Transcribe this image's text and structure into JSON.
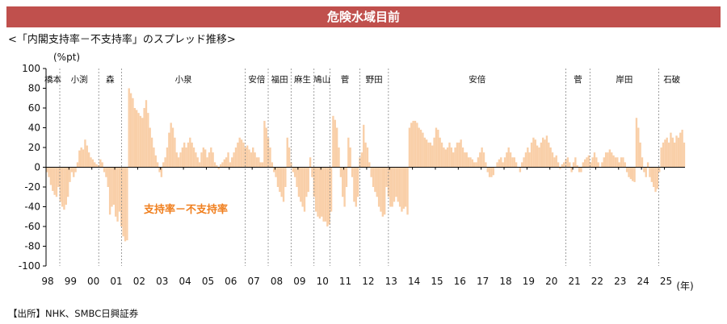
{
  "banner": {
    "title": "危険水域目前"
  },
  "subtitle": "<「内閣支持率－不支持率」のスプレッド推移>",
  "source": "【出所】NHK、SMBC日興証券",
  "colors": {
    "banner": "#c0504d",
    "bar": "#f9cfa8",
    "annotation": "#f07f1e",
    "divider": "#888888"
  },
  "chart_data": {
    "type": "bar",
    "unit_label": "(%pt)",
    "ylim": [
      -100,
      100
    ],
    "yticks": [
      100,
      80,
      60,
      40,
      20,
      0,
      -20,
      -40,
      -60,
      -80,
      -100
    ],
    "xlim": [
      1998,
      2025.9
    ],
    "xticks": [
      "98",
      "99",
      "00",
      "01",
      "02",
      "03",
      "04",
      "05",
      "06",
      "07",
      "08",
      "09",
      "10",
      "11",
      "12",
      "13",
      "14",
      "15",
      "16",
      "17",
      "18",
      "19",
      "20",
      "21",
      "22",
      "23",
      "24",
      "25"
    ],
    "xunit": "(年)",
    "annotation": "支持率－不支持率",
    "cabinets": [
      {
        "name": "橋本",
        "start": 1998.0
      },
      {
        "name": "小渕",
        "start": 1998.6
      },
      {
        "name": "森",
        "start": 2000.3
      },
      {
        "name": "小泉",
        "start": 2001.3
      },
      {
        "name": "安倍",
        "start": 2006.7
      },
      {
        "name": "福田",
        "start": 2007.7
      },
      {
        "name": "麻生",
        "start": 2008.7
      },
      {
        "name": "鳩山",
        "start": 2009.7
      },
      {
        "name": "菅",
        "start": 2010.4
      },
      {
        "name": "野田",
        "start": 2011.7
      },
      {
        "name": "安倍",
        "start": 2012.95
      },
      {
        "name": "菅",
        "start": 2020.7
      },
      {
        "name": "岸田",
        "start": 2021.75
      },
      {
        "name": "石破",
        "start": 2024.75
      }
    ],
    "series": [
      {
        "x_start": 1998.0,
        "step": 0.0833,
        "values": [
          -5,
          -10,
          -18,
          -24,
          -28,
          -30,
          -20,
          -35,
          -40,
          -43,
          -38,
          -30,
          -15,
          -5,
          -10,
          -5,
          5,
          17,
          20,
          18,
          28,
          22,
          15,
          10,
          8,
          5,
          3,
          2,
          8,
          5,
          -5,
          -10,
          -20,
          -48,
          -40,
          -38,
          -50,
          -55,
          -45,
          -60,
          -70,
          -75,
          -74,
          80,
          75,
          70,
          60,
          58,
          55,
          52,
          50,
          60,
          68,
          55,
          40,
          30,
          20,
          12,
          5,
          -5,
          -10,
          5,
          10,
          20,
          35,
          45,
          40,
          30,
          15,
          10,
          15,
          20,
          25,
          20,
          25,
          30,
          25,
          20,
          15,
          10,
          5,
          15,
          20,
          18,
          10,
          15,
          20,
          15,
          5,
          2,
          -2,
          3,
          5,
          8,
          10,
          15,
          5,
          10,
          15,
          20,
          25,
          30,
          28,
          25,
          20,
          22,
          18,
          15,
          20,
          15,
          10,
          10,
          5,
          5,
          47,
          40,
          30,
          20,
          5,
          -5,
          -10,
          -20,
          -25,
          -30,
          -35,
          -20,
          30,
          20,
          5,
          -5,
          -10,
          -20,
          -30,
          -35,
          -40,
          -45,
          -30,
          -25,
          10,
          -10,
          -30,
          -45,
          -50,
          -52,
          -50,
          -55,
          -55,
          -60,
          -58,
          -45,
          52,
          48,
          40,
          20,
          -10,
          -30,
          -40,
          -20,
          30,
          20,
          -10,
          -35,
          -40,
          -30,
          10,
          15,
          43,
          25,
          20,
          5,
          -10,
          -20,
          -25,
          -30,
          -40,
          -45,
          -50,
          -48,
          -20,
          -30,
          -40,
          -40,
          -35,
          -30,
          -35,
          -40,
          -45,
          -42,
          -40,
          -48,
          40,
          45,
          47,
          47,
          45,
          40,
          38,
          35,
          30,
          28,
          25,
          25,
          22,
          30,
          40,
          38,
          30,
          25,
          20,
          18,
          20,
          25,
          20,
          15,
          20,
          25,
          25,
          28,
          20,
          15,
          15,
          10,
          10,
          8,
          5,
          5,
          10,
          15,
          20,
          15,
          5,
          -5,
          -10,
          -10,
          -8,
          0,
          5,
          8,
          10,
          5,
          10,
          15,
          20,
          15,
          10,
          10,
          5,
          0,
          -5,
          5,
          10,
          15,
          20,
          15,
          25,
          30,
          28,
          22,
          20,
          25,
          30,
          28,
          32,
          25,
          20,
          15,
          10,
          12,
          5,
          -2,
          3,
          5,
          8,
          10,
          5,
          -5,
          5,
          10,
          2,
          -5,
          -5,
          5,
          8,
          10,
          12,
          5,
          10,
          15,
          10,
          5,
          0,
          5,
          10,
          15,
          15,
          18,
          15,
          12,
          10,
          10,
          5,
          10,
          10,
          5,
          -5,
          -10,
          -12,
          -14,
          -15,
          50,
          40,
          25,
          10,
          -5,
          -10,
          5,
          -10,
          -15,
          -20,
          -25,
          -22,
          -5,
          20,
          25,
          28,
          30,
          25,
          35,
          30,
          25,
          32,
          30,
          35,
          38,
          25,
          10,
          5,
          -2,
          -5,
          -10,
          -10,
          5,
          10,
          15,
          5,
          -5,
          -10,
          -15,
          -20,
          -25,
          -30,
          -32,
          -35,
          -30,
          -33,
          -35,
          -38,
          -35,
          -30,
          -38,
          -40,
          10,
          -5,
          5,
          10,
          -10,
          -15
        ]
      }
    ]
  }
}
